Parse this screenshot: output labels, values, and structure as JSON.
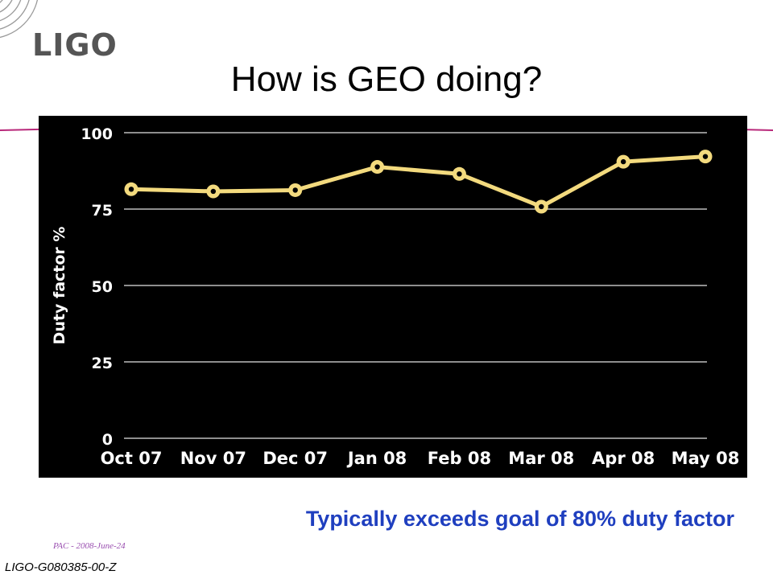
{
  "logo": {
    "text": "LIGO"
  },
  "slide": {
    "title": "How is GEO doing?",
    "caption": "Typically exceeds goal of 80% duty factor",
    "footer_date": "PAC - 2008-June-24",
    "footer_id": "LIGO-G080385-00-Z"
  },
  "colors": {
    "line": "#f3da7e",
    "marker_fill": "#f3da7e",
    "marker_center": "#000000",
    "background": "#000000",
    "grid": "#bdbdbd",
    "text": "#ffffff",
    "accent_rule": "#b8287a",
    "caption": "#1f3fbf"
  },
  "chart_data": {
    "type": "line",
    "categories": [
      "Oct 07",
      "Nov 07",
      "Dec 07",
      "Jan 08",
      "Feb 08",
      "Mar 08",
      "Apr 08",
      "May 08"
    ],
    "series": [
      {
        "values": [
          81.5,
          80.8,
          81.2,
          88.8,
          86.5,
          75.8,
          90.5,
          92.2
        ]
      }
    ],
    "ylabel": "Duty factor %",
    "ylim": [
      0,
      100
    ],
    "yticks": [
      "0",
      "25",
      "50",
      "75",
      "100"
    ],
    "grid": true
  }
}
